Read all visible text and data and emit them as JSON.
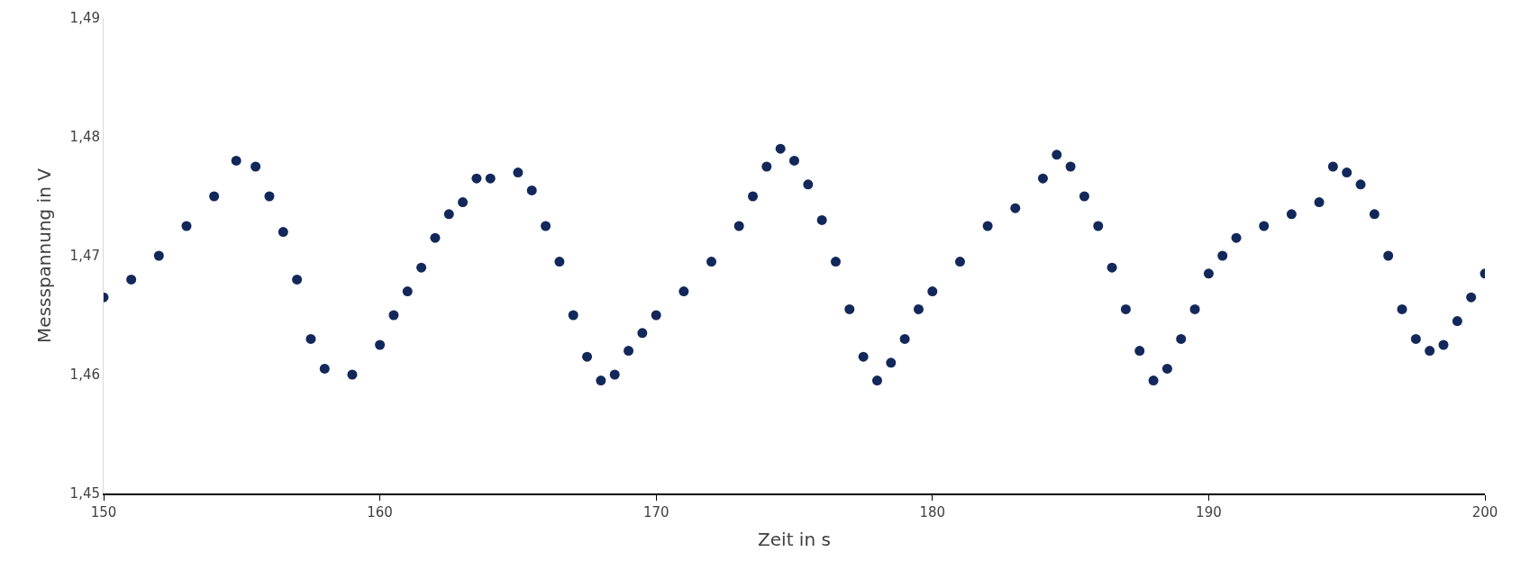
{
  "chart_data": {
    "type": "scatter",
    "xlabel": "Zeit in s",
    "ylabel": "Messspannung in V",
    "marker": "circle",
    "grid": false,
    "xlim": [
      150,
      200
    ],
    "xticks": [
      150,
      160,
      170,
      180,
      190,
      200
    ],
    "ylim": [
      1.45,
      1.49
    ],
    "yticks": [
      {
        "value": 1.45,
        "label": "1,45"
      },
      {
        "value": 1.46,
        "label": "1,46"
      },
      {
        "value": 1.47,
        "label": "1,47"
      },
      {
        "value": 1.48,
        "label": "1,48"
      },
      {
        "value": 1.49,
        "label": "1,49"
      }
    ],
    "series": [
      {
        "color": "#13285a",
        "x": [
          150,
          151,
          152,
          153,
          154,
          154.8,
          155.5,
          156,
          156.5,
          157,
          157.5,
          158,
          159,
          160,
          160.5,
          161,
          161.5,
          162,
          162.5,
          163,
          163.5,
          164,
          165,
          165.5,
          166,
          166.5,
          167,
          167.5,
          168,
          168.5,
          169,
          169.5,
          170,
          171,
          172,
          173,
          173.5,
          174,
          174.5,
          175,
          175.5,
          176,
          176.5,
          177,
          177.5,
          178,
          178.5,
          179,
          179.5,
          180,
          181,
          182,
          183,
          184,
          184.5,
          185,
          185.5,
          186,
          186.5,
          187,
          187.5,
          188,
          188.5,
          189,
          189.5,
          190,
          190.5,
          191,
          192,
          193,
          194,
          194.5,
          195,
          195.5,
          196,
          196.5,
          197,
          197.5,
          198,
          198.5,
          199,
          199.5,
          200
        ],
        "values": [
          1.4665,
          1.468,
          1.47,
          1.4725,
          1.475,
          1.478,
          1.4775,
          1.475,
          1.472,
          1.468,
          1.463,
          1.4605,
          1.46,
          1.4625,
          1.465,
          1.467,
          1.469,
          1.4715,
          1.4735,
          1.4745,
          1.4765,
          1.4765,
          1.477,
          1.4755,
          1.4725,
          1.4695,
          1.465,
          1.4615,
          1.4595,
          1.46,
          1.462,
          1.4635,
          1.465,
          1.467,
          1.4695,
          1.4725,
          1.475,
          1.4775,
          1.479,
          1.478,
          1.476,
          1.473,
          1.4695,
          1.4655,
          1.4615,
          1.4595,
          1.461,
          1.463,
          1.4655,
          1.467,
          1.4695,
          1.4725,
          1.474,
          1.4765,
          1.4785,
          1.4775,
          1.475,
          1.4725,
          1.469,
          1.4655,
          1.462,
          1.4595,
          1.4605,
          1.463,
          1.4655,
          1.4685,
          1.47,
          1.4715,
          1.4725,
          1.4735,
          1.4745,
          1.4775,
          1.477,
          1.476,
          1.4735,
          1.47,
          1.4655,
          1.463,
          1.462,
          1.4625,
          1.4645,
          1.4665,
          1.4685
        ]
      }
    ]
  }
}
